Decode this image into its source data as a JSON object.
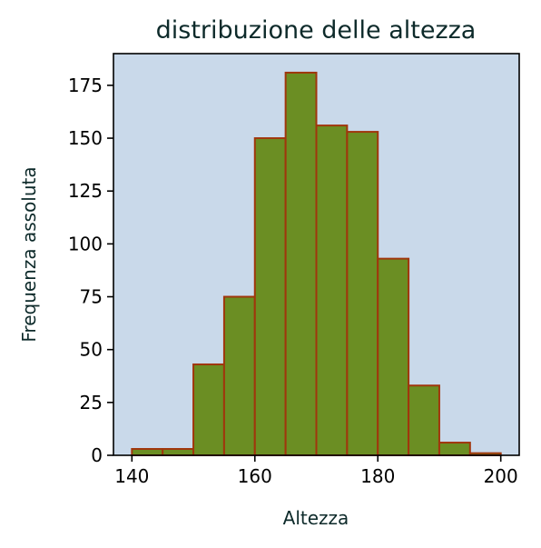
{
  "chart_data": {
    "type": "bar",
    "title": "distribuzione delle altezza",
    "xlabel": "Altezza",
    "ylabel": "Frequenza assoluta",
    "bins": [
      {
        "start": 140,
        "end": 145,
        "value": 3
      },
      {
        "start": 145,
        "end": 150,
        "value": 3
      },
      {
        "start": 150,
        "end": 155,
        "value": 43
      },
      {
        "start": 155,
        "end": 160,
        "value": 75
      },
      {
        "start": 160,
        "end": 165,
        "value": 150
      },
      {
        "start": 165,
        "end": 170,
        "value": 181
      },
      {
        "start": 170,
        "end": 175,
        "value": 156
      },
      {
        "start": 175,
        "end": 180,
        "value": 153
      },
      {
        "start": 180,
        "end": 185,
        "value": 93
      },
      {
        "start": 185,
        "end": 190,
        "value": 33
      },
      {
        "start": 190,
        "end": 195,
        "value": 6
      },
      {
        "start": 195,
        "end": 200,
        "value": 1
      }
    ],
    "xlim": [
      137,
      203
    ],
    "ylim": [
      0,
      190
    ],
    "xticks": [
      140,
      160,
      180,
      200
    ],
    "yticks": [
      0,
      25,
      50,
      75,
      100,
      125,
      150,
      175
    ],
    "grid": false,
    "legend": "none",
    "colors": {
      "background": "#c9d9ea",
      "bar_fill": "#6b8e23",
      "bar_edge": "#a0360c",
      "text": "#0d2a2a"
    }
  }
}
